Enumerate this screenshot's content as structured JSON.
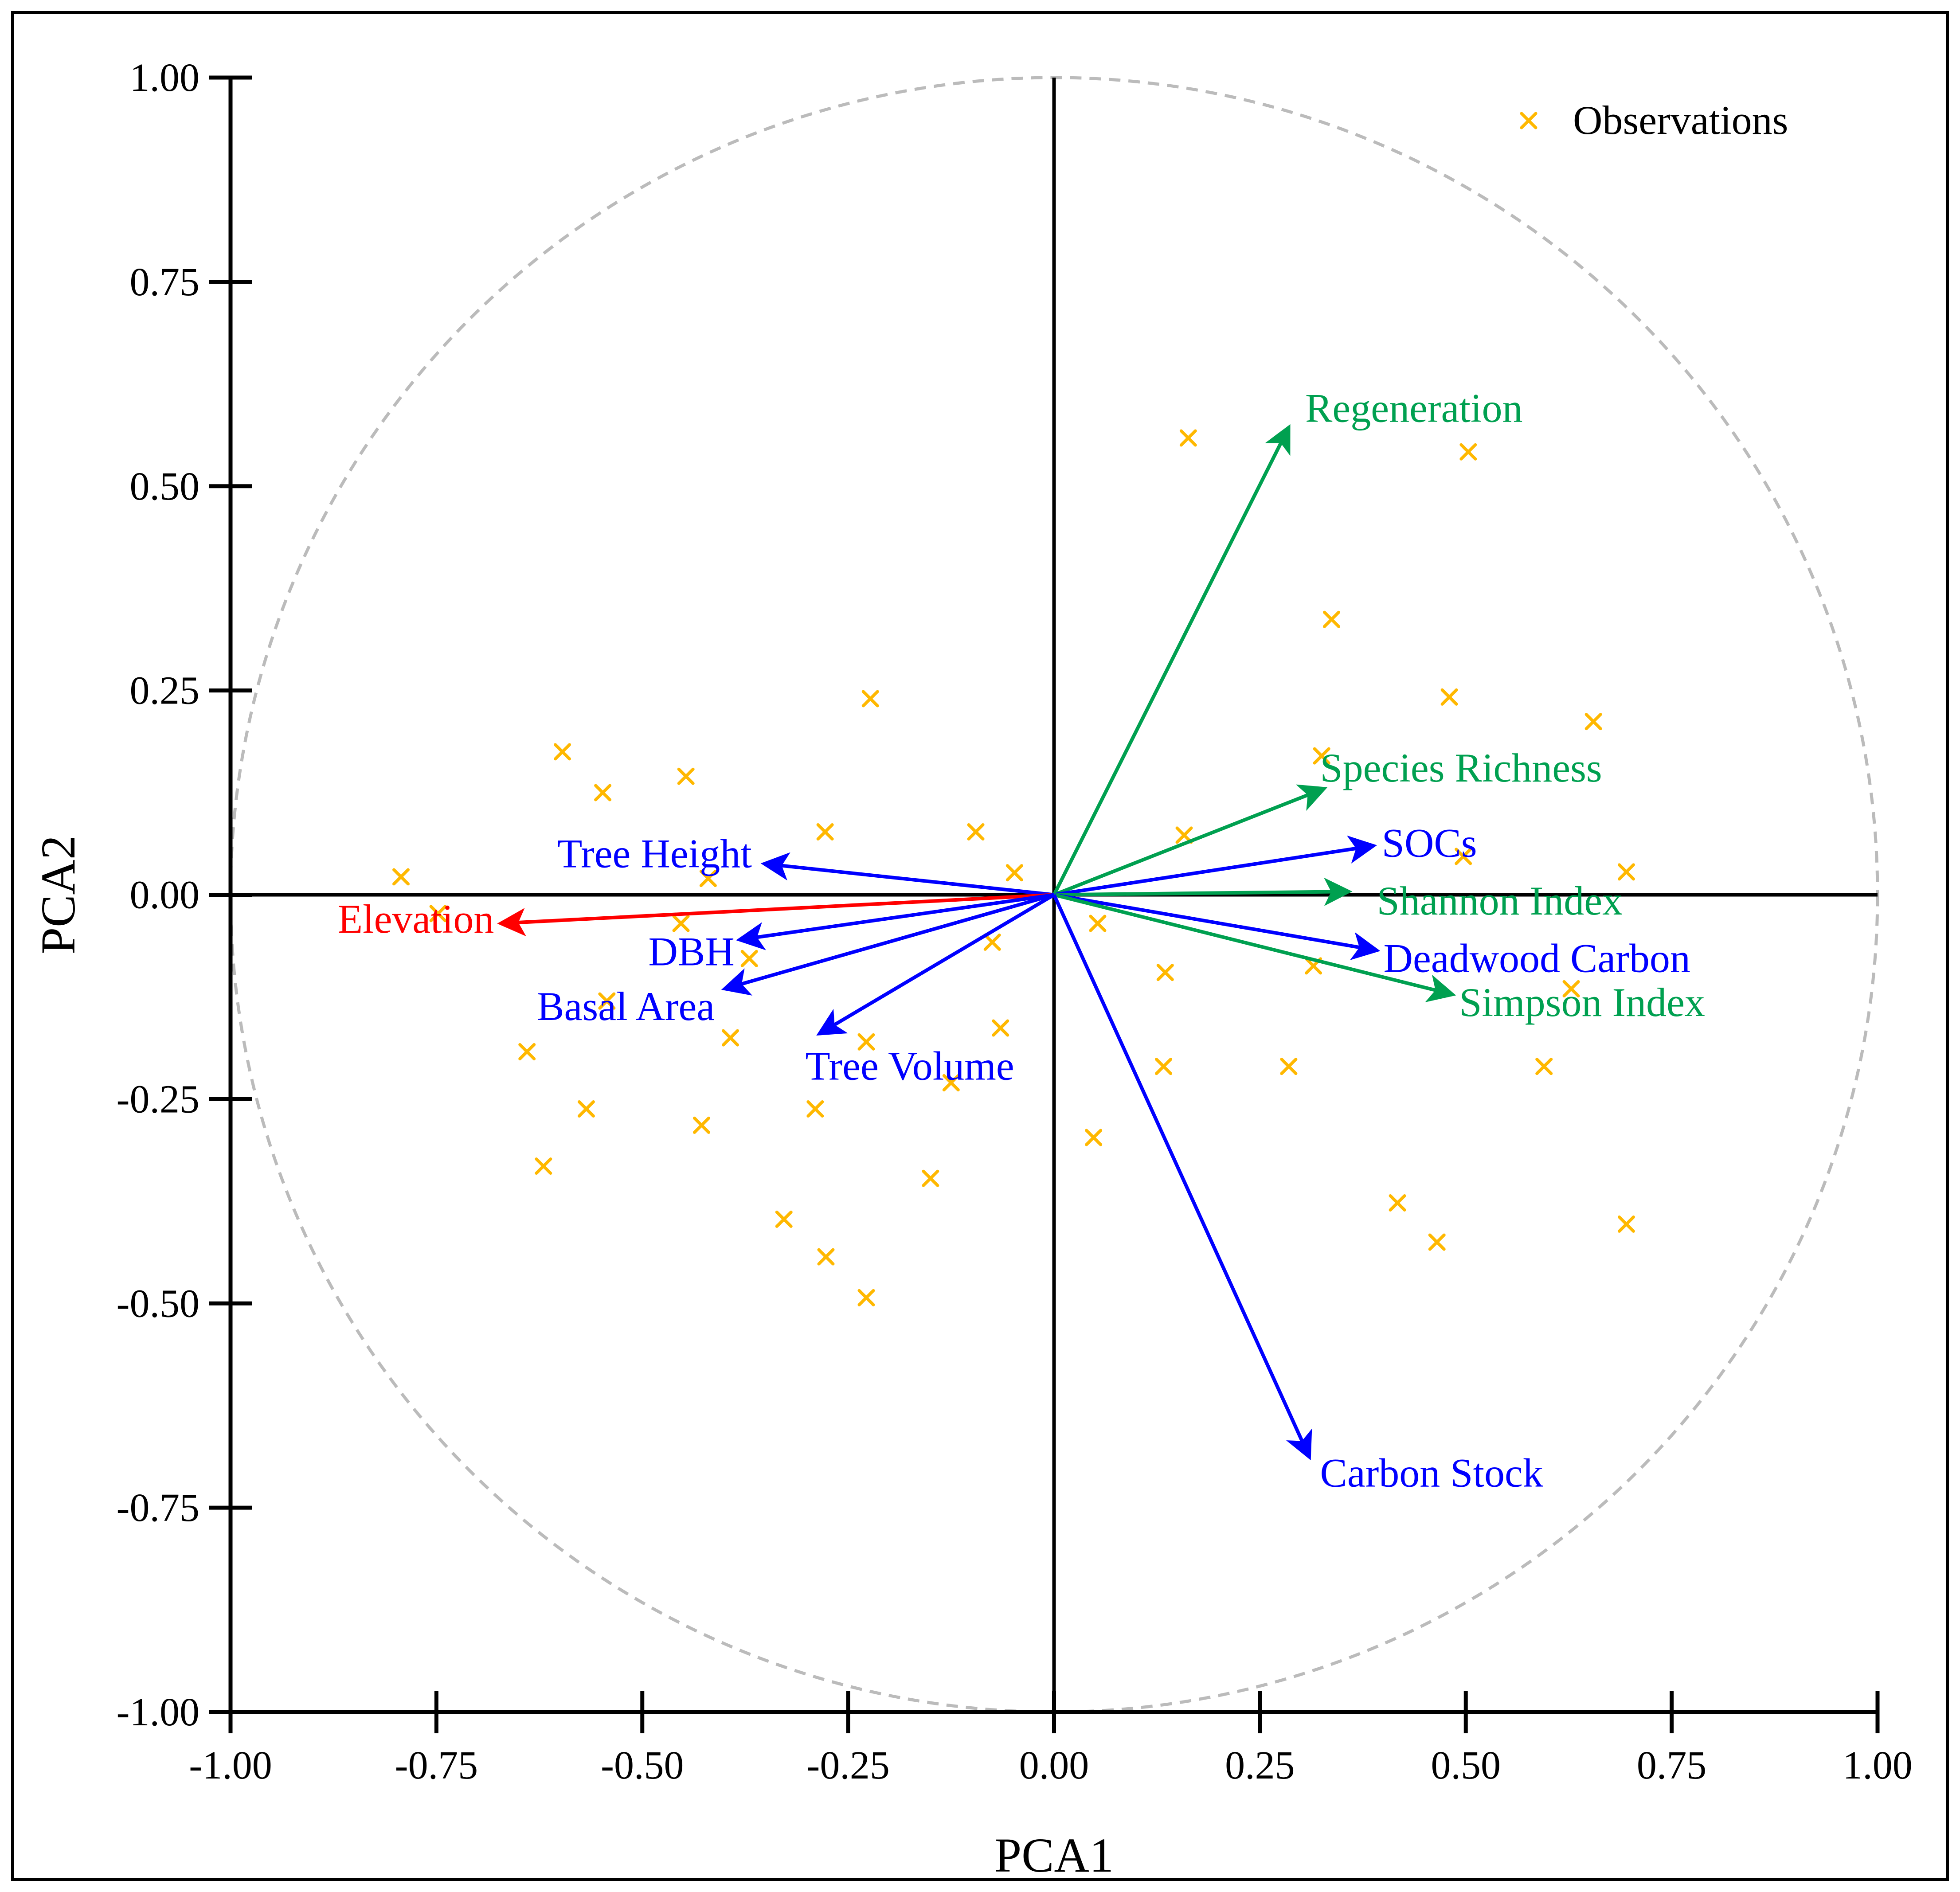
{
  "chart_data": {
    "type": "scatter",
    "subtype": "pca-biplot",
    "title": "",
    "xlabel": "PCA1",
    "ylabel": "PCA2",
    "xlim": [
      -1.0,
      1.0
    ],
    "ylim": [
      -1.0,
      1.0
    ],
    "x_ticks": [
      "-1.00",
      "-0.75",
      "-0.50",
      "-0.25",
      "0.00",
      "0.25",
      "0.50",
      "0.75",
      "1.00"
    ],
    "y_ticks": [
      "1.00",
      "0.75",
      "0.50",
      "0.25",
      "0.00",
      "-0.25",
      "-0.50",
      "-0.75",
      "-1.00"
    ],
    "x_tick_values": [
      -1.0,
      -0.75,
      -0.5,
      -0.25,
      0.0,
      0.25,
      0.5,
      0.75,
      1.0
    ],
    "y_tick_values": [
      1.0,
      0.75,
      0.5,
      0.25,
      0.0,
      -0.25,
      -0.5,
      -0.75,
      -1.0
    ],
    "unit_circle_radius": 1.0,
    "legend": {
      "position": "top-right",
      "entries": [
        "Observations"
      ]
    },
    "colors": {
      "observations": "#FFB800",
      "red": "#FF0000",
      "blue": "#0000FF",
      "green": "#00A050",
      "circle": "#BBBBBB",
      "axis": "#000000"
    },
    "vectors": [
      {
        "label": "Regeneration",
        "x": 0.285,
        "y": 0.572,
        "color": "green",
        "label_x": 0.305,
        "label_y": 0.595,
        "anchor": "start"
      },
      {
        "label": "Species Richness",
        "x": 0.328,
        "y": 0.13,
        "color": "green",
        "label_x": 0.323,
        "label_y": 0.155,
        "anchor": "start"
      },
      {
        "label": "SOCs",
        "x": 0.388,
        "y": 0.06,
        "color": "blue",
        "label_x": 0.398,
        "label_y": 0.063,
        "anchor": "start"
      },
      {
        "label": "Shannon Index",
        "x": 0.358,
        "y": 0.004,
        "color": "green",
        "label_x": 0.392,
        "label_y": -0.008,
        "anchor": "start"
      },
      {
        "label": "Deadwood Carbon",
        "x": 0.392,
        "y": -0.068,
        "color": "blue",
        "label_x": 0.4,
        "label_y": -0.078,
        "anchor": "start"
      },
      {
        "label": "Simpson Index",
        "x": 0.484,
        "y": -0.122,
        "color": "green",
        "label_x": 0.492,
        "label_y": -0.132,
        "anchor": "start"
      },
      {
        "label": "Carbon Stock",
        "x": 0.31,
        "y": -0.688,
        "color": "blue",
        "label_x": 0.323,
        "label_y": -0.708,
        "anchor": "start"
      },
      {
        "label": "Tree Height",
        "x": -0.352,
        "y": 0.038,
        "color": "blue",
        "label_x": -0.367,
        "label_y": 0.05,
        "anchor": "end"
      },
      {
        "label": "Elevation",
        "x": -0.672,
        "y": -0.035,
        "color": "red",
        "label_x": -0.68,
        "label_y": -0.03,
        "anchor": "end"
      },
      {
        "label": "DBH",
        "x": -0.382,
        "y": -0.055,
        "color": "blue",
        "label_x": -0.388,
        "label_y": -0.07,
        "anchor": "end"
      },
      {
        "label": "Basal Area",
        "x": -0.4,
        "y": -0.115,
        "color": "blue",
        "label_x": -0.412,
        "label_y": -0.137,
        "anchor": "end"
      },
      {
        "label": "Tree Volume",
        "x": -0.285,
        "y": -0.17,
        "color": "blue",
        "label_x": -0.302,
        "label_y": -0.21,
        "anchor": "start"
      }
    ],
    "observations": [
      [
        0.163,
        0.559
      ],
      [
        0.503,
        0.542
      ],
      [
        0.337,
        0.337
      ],
      [
        0.48,
        0.242
      ],
      [
        0.655,
        0.212
      ],
      [
        0.325,
        0.17
      ],
      [
        0.158,
        0.073
      ],
      [
        0.497,
        0.047
      ],
      [
        0.695,
        0.028
      ],
      [
        0.053,
        -0.035
      ],
      [
        0.135,
        -0.095
      ],
      [
        0.315,
        -0.087
      ],
      [
        0.628,
        -0.115
      ],
      [
        0.133,
        -0.21
      ],
      [
        0.285,
        -0.21
      ],
      [
        0.595,
        -0.21
      ],
      [
        0.048,
        -0.297
      ],
      [
        0.417,
        -0.377
      ],
      [
        0.465,
        -0.425
      ],
      [
        0.695,
        -0.403
      ],
      [
        -0.223,
        0.24
      ],
      [
        -0.597,
        0.175
      ],
      [
        -0.548,
        0.125
      ],
      [
        -0.447,
        0.145
      ],
      [
        -0.278,
        0.077
      ],
      [
        -0.095,
        0.077
      ],
      [
        -0.048,
        0.027
      ],
      [
        -0.793,
        0.022
      ],
      [
        -0.42,
        0.02
      ],
      [
        -0.748,
        -0.023
      ],
      [
        -0.453,
        -0.035
      ],
      [
        -0.37,
        -0.078
      ],
      [
        -0.075,
        -0.058
      ],
      [
        -0.543,
        -0.13
      ],
      [
        -0.64,
        -0.192
      ],
      [
        -0.393,
        -0.175
      ],
      [
        -0.228,
        -0.18
      ],
      [
        -0.065,
        -0.163
      ],
      [
        -0.568,
        -0.262
      ],
      [
        -0.29,
        -0.262
      ],
      [
        -0.125,
        -0.23
      ],
      [
        -0.428,
        -0.282
      ],
      [
        -0.62,
        -0.332
      ],
      [
        -0.15,
        -0.347
      ],
      [
        -0.328,
        -0.397
      ],
      [
        -0.277,
        -0.443
      ],
      [
        -0.228,
        -0.493
      ]
    ]
  }
}
